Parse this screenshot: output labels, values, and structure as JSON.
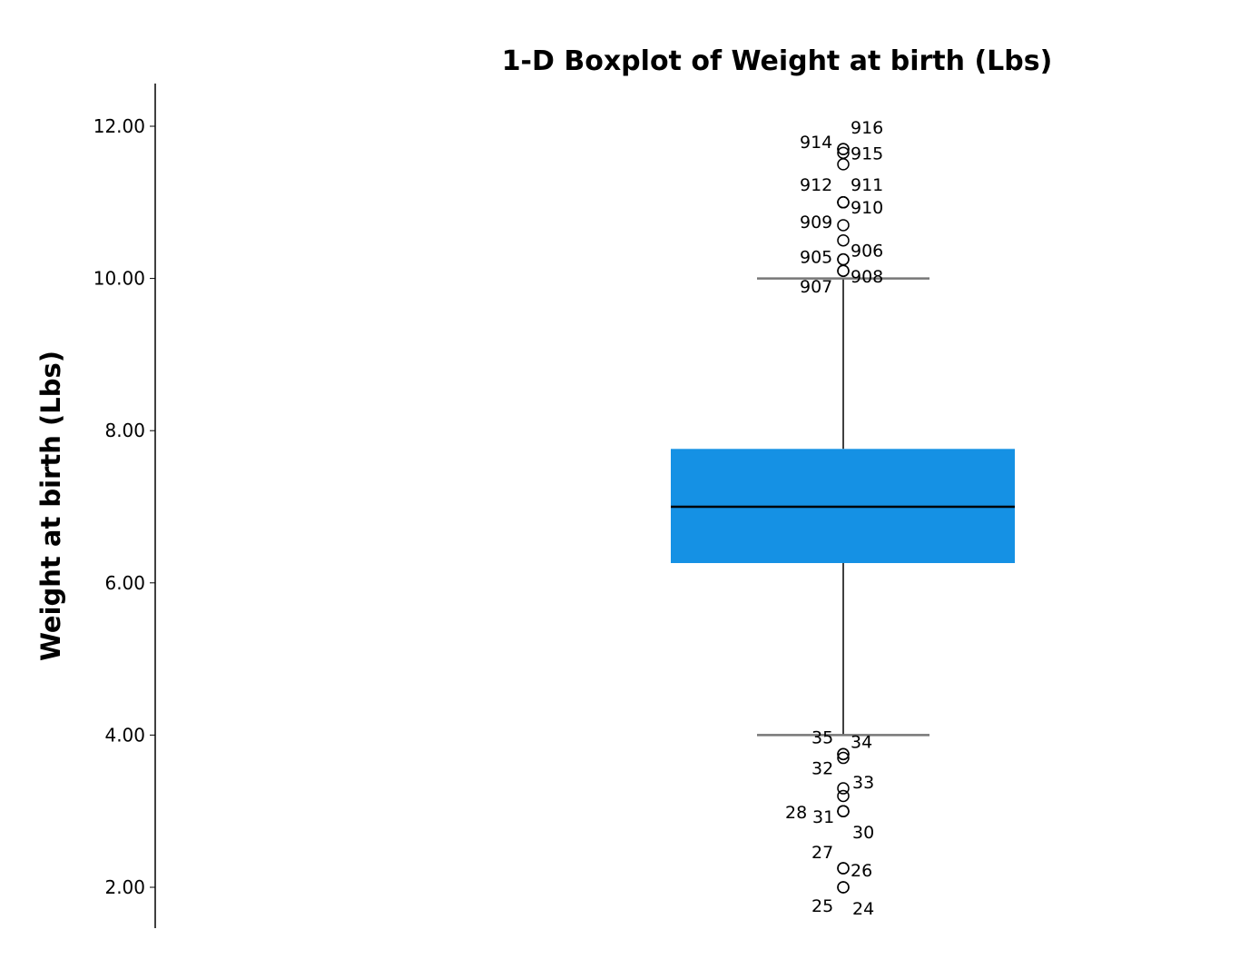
{
  "chart_data": {
    "type": "boxplot",
    "title": "1-D Boxplot of Weight at birth (Lbs)",
    "xlabel": "",
    "ylabel": "Weight at birth (Lbs)",
    "ylim": [
      1.5,
      12.55
    ],
    "yticks": [
      "2.00",
      "4.00",
      "6.00",
      "8.00",
      "10.00",
      "12.00"
    ],
    "grid": false,
    "colors": {
      "box": "#1591e4",
      "median": "#000000",
      "whisker": "#000000",
      "cap": "#777777",
      "outlier": "#000000"
    },
    "box": {
      "q1": 6.26,
      "median": 7.0,
      "q3": 7.76,
      "whisker_low": 4.0,
      "whisker_high": 10.0
    },
    "outliers": [
      {
        "value": 11.7,
        "label": "914"
      },
      {
        "value": 11.7,
        "label": "916"
      },
      {
        "value": 11.65,
        "label": "915"
      },
      {
        "value": 11.5,
        "label": ""
      },
      {
        "value": 11.0,
        "label": "912"
      },
      {
        "value": 11.0,
        "label": "911"
      },
      {
        "value": 11.0,
        "label": "910"
      },
      {
        "value": 10.7,
        "label": "909"
      },
      {
        "value": 10.5,
        "label": ""
      },
      {
        "value": 10.25,
        "label": "905"
      },
      {
        "value": 10.25,
        "label": "906"
      },
      {
        "value": 10.1,
        "label": "908"
      },
      {
        "value": 10.1,
        "label": "907"
      },
      {
        "value": 3.75,
        "label": "35"
      },
      {
        "value": 3.75,
        "label": "34"
      },
      {
        "value": 3.7,
        "label": "32"
      },
      {
        "value": 3.3,
        "label": "33"
      },
      {
        "value": 3.2,
        "label": ""
      },
      {
        "value": 3.0,
        "label": "28"
      },
      {
        "value": 3.0,
        "label": "31"
      },
      {
        "value": 3.0,
        "label": "30"
      },
      {
        "value": 2.25,
        "label": "27"
      },
      {
        "value": 2.25,
        "label": "26"
      },
      {
        "value": 2.0,
        "label": "25"
      },
      {
        "value": 2.0,
        "label": "24"
      }
    ]
  }
}
